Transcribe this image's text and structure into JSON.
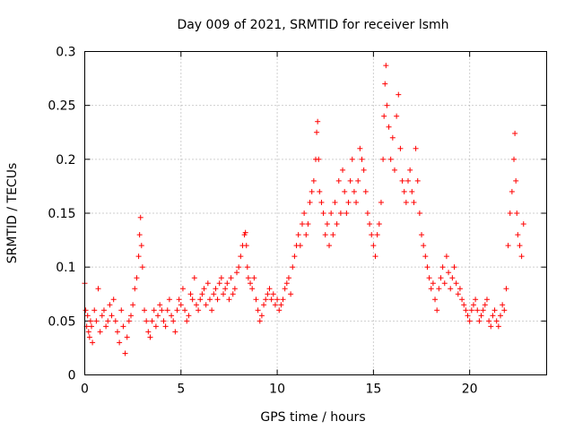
{
  "chart_data": {
    "type": "scatter",
    "title": "Day 009 of 2021, SRMTID for receiver lsmh",
    "xlabel": "GPS time / hours",
    "ylabel": "SRMTID / TECUs",
    "xlim": [
      0,
      24
    ],
    "ylim": [
      0,
      0.3
    ],
    "xticks": [
      0,
      5,
      10,
      15,
      20
    ],
    "xtick_labels": [
      "0",
      "5",
      "10",
      "15",
      "20"
    ],
    "yticks": [
      0,
      0.05,
      0.1,
      0.15,
      0.2,
      0.25,
      0.3
    ],
    "ytick_labels": [
      "0",
      "0.05",
      "0.1",
      "0.15",
      "0.2",
      "0.25",
      "0.3"
    ],
    "grid": true,
    "marker": "+",
    "color": "#ff0000",
    "series": [
      {
        "name": "SRMTID",
        "x": [
          0.0,
          0.05,
          0.1,
          0.15,
          0.2,
          0.25,
          0.3,
          0.35,
          0.4,
          0.5,
          0.6,
          0.7,
          0.8,
          0.9,
          1.0,
          1.1,
          1.2,
          1.3,
          1.4,
          1.5,
          1.6,
          1.7,
          1.8,
          1.9,
          2.0,
          2.1,
          2.2,
          2.3,
          2.4,
          2.5,
          2.6,
          2.7,
          2.8,
          2.85,
          2.9,
          2.95,
          3.0,
          3.1,
          3.2,
          3.3,
          3.4,
          3.5,
          3.6,
          3.7,
          3.8,
          3.9,
          4.0,
          4.1,
          4.2,
          4.3,
          4.4,
          4.5,
          4.6,
          4.7,
          4.8,
          4.9,
          5.0,
          5.1,
          5.2,
          5.3,
          5.4,
          5.5,
          5.6,
          5.7,
          5.8,
          5.9,
          6.0,
          6.1,
          6.2,
          6.3,
          6.4,
          6.5,
          6.6,
          6.7,
          6.8,
          6.9,
          7.0,
          7.1,
          7.2,
          7.3,
          7.4,
          7.5,
          7.6,
          7.7,
          7.8,
          7.9,
          8.0,
          8.1,
          8.2,
          8.3,
          8.35,
          8.4,
          8.45,
          8.5,
          8.6,
          8.7,
          8.8,
          8.9,
          9.0,
          9.1,
          9.2,
          9.3,
          9.4,
          9.5,
          9.6,
          9.7,
          9.8,
          9.9,
          10.0,
          10.1,
          10.2,
          10.3,
          10.4,
          10.5,
          10.6,
          10.7,
          10.8,
          10.9,
          11.0,
          11.1,
          11.2,
          11.3,
          11.4,
          11.5,
          11.6,
          11.7,
          11.8,
          11.9,
          12.0,
          12.05,
          12.1,
          12.15,
          12.2,
          12.3,
          12.4,
          12.5,
          12.6,
          12.7,
          12.8,
          12.9,
          13.0,
          13.1,
          13.2,
          13.3,
          13.4,
          13.5,
          13.6,
          13.7,
          13.8,
          13.9,
          14.0,
          14.1,
          14.2,
          14.3,
          14.4,
          14.5,
          14.6,
          14.7,
          14.8,
          14.9,
          15.0,
          15.1,
          15.2,
          15.3,
          15.4,
          15.5,
          15.55,
          15.6,
          15.65,
          15.7,
          15.8,
          15.9,
          16.0,
          16.1,
          16.2,
          16.3,
          16.4,
          16.5,
          16.6,
          16.7,
          16.8,
          16.9,
          17.0,
          17.1,
          17.2,
          17.3,
          17.4,
          17.5,
          17.6,
          17.7,
          17.8,
          17.9,
          18.0,
          18.1,
          18.2,
          18.3,
          18.4,
          18.5,
          18.6,
          18.7,
          18.8,
          18.9,
          19.0,
          19.1,
          19.2,
          19.3,
          19.4,
          19.5,
          19.6,
          19.7,
          19.8,
          19.9,
          20.0,
          20.1,
          20.2,
          20.3,
          20.4,
          20.5,
          20.6,
          20.7,
          20.8,
          20.9,
          21.0,
          21.1,
          21.2,
          21.3,
          21.4,
          21.5,
          21.6,
          21.7,
          21.8,
          21.9,
          22.0,
          22.1,
          22.2,
          22.3,
          22.35,
          22.4,
          22.45,
          22.5,
          22.6,
          22.7,
          22.8
        ],
        "y": [
          0.085,
          0.06,
          0.045,
          0.055,
          0.04,
          0.035,
          0.05,
          0.045,
          0.03,
          0.06,
          0.05,
          0.08,
          0.04,
          0.055,
          0.06,
          0.045,
          0.05,
          0.065,
          0.055,
          0.07,
          0.05,
          0.04,
          0.03,
          0.06,
          0.045,
          0.02,
          0.035,
          0.05,
          0.055,
          0.065,
          0.08,
          0.09,
          0.11,
          0.13,
          0.146,
          0.12,
          0.1,
          0.06,
          0.05,
          0.04,
          0.035,
          0.05,
          0.06,
          0.045,
          0.055,
          0.065,
          0.06,
          0.05,
          0.045,
          0.06,
          0.07,
          0.055,
          0.05,
          0.04,
          0.06,
          0.07,
          0.065,
          0.08,
          0.06,
          0.05,
          0.055,
          0.075,
          0.07,
          0.09,
          0.065,
          0.06,
          0.07,
          0.075,
          0.08,
          0.065,
          0.085,
          0.07,
          0.06,
          0.075,
          0.08,
          0.07,
          0.085,
          0.09,
          0.075,
          0.08,
          0.085,
          0.07,
          0.09,
          0.075,
          0.08,
          0.095,
          0.1,
          0.11,
          0.12,
          0.13,
          0.132,
          0.12,
          0.1,
          0.09,
          0.085,
          0.08,
          0.09,
          0.07,
          0.06,
          0.05,
          0.055,
          0.065,
          0.07,
          0.075,
          0.08,
          0.07,
          0.075,
          0.065,
          0.07,
          0.06,
          0.065,
          0.07,
          0.08,
          0.085,
          0.09,
          0.075,
          0.1,
          0.11,
          0.12,
          0.13,
          0.12,
          0.14,
          0.15,
          0.13,
          0.14,
          0.16,
          0.17,
          0.18,
          0.2,
          0.225,
          0.235,
          0.2,
          0.17,
          0.16,
          0.15,
          0.13,
          0.14,
          0.12,
          0.15,
          0.13,
          0.16,
          0.14,
          0.18,
          0.15,
          0.19,
          0.17,
          0.15,
          0.16,
          0.18,
          0.2,
          0.17,
          0.16,
          0.18,
          0.21,
          0.2,
          0.19,
          0.17,
          0.15,
          0.14,
          0.13,
          0.12,
          0.11,
          0.13,
          0.14,
          0.16,
          0.2,
          0.24,
          0.27,
          0.287,
          0.25,
          0.23,
          0.2,
          0.22,
          0.19,
          0.24,
          0.26,
          0.21,
          0.18,
          0.17,
          0.16,
          0.18,
          0.19,
          0.17,
          0.16,
          0.21,
          0.18,
          0.15,
          0.13,
          0.12,
          0.11,
          0.1,
          0.09,
          0.08,
          0.085,
          0.07,
          0.06,
          0.08,
          0.09,
          0.1,
          0.085,
          0.11,
          0.095,
          0.08,
          0.09,
          0.1,
          0.085,
          0.075,
          0.08,
          0.07,
          0.065,
          0.06,
          0.055,
          0.05,
          0.06,
          0.065,
          0.07,
          0.06,
          0.05,
          0.055,
          0.06,
          0.065,
          0.07,
          0.05,
          0.045,
          0.055,
          0.06,
          0.05,
          0.045,
          0.055,
          0.065,
          0.06,
          0.08,
          0.12,
          0.15,
          0.17,
          0.2,
          0.224,
          0.18,
          0.15,
          0.13,
          0.12,
          0.11,
          0.14
        ]
      }
    ]
  }
}
